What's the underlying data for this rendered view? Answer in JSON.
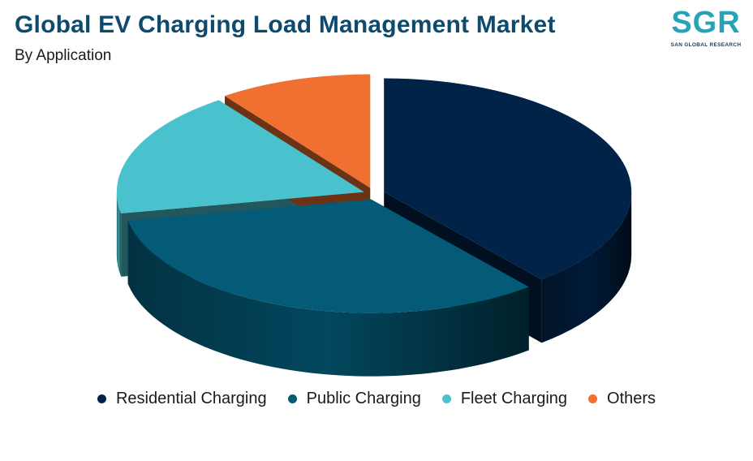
{
  "header": {
    "title": "Global EV Charging Load Management Market",
    "subtitle": "By Application"
  },
  "logo": {
    "mark": "SGR",
    "text": "SAN GLOBAL RESEARCH"
  },
  "chart_data": {
    "type": "pie",
    "title": "Global EV Charging Load Management Market",
    "subtitle": "By Application",
    "categories": [
      "Residential Charging",
      "Public Charging",
      "Fleet Charging",
      "Others"
    ],
    "values": [
      39,
      33,
      18,
      10
    ],
    "colors": [
      "#002347",
      "#035b78",
      "#4ac2ce",
      "#ef7030"
    ],
    "legend_position": "bottom",
    "three_d": true,
    "exploded": true
  }
}
